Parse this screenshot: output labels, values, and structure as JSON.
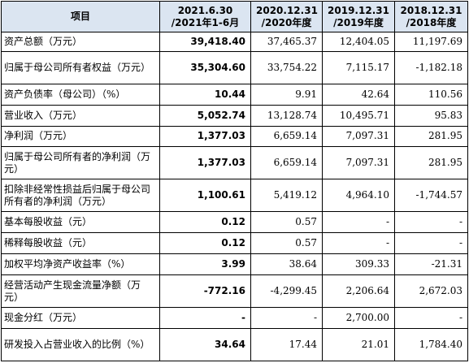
{
  "headers": {
    "item": "项目",
    "c1_line1": "2021.6.30",
    "c1_line2": "/2021年1-6月",
    "c2_line1": "2020.12.31",
    "c2_line2": "/2020年度",
    "c3_line1": "2019.12.31",
    "c3_line2": "/2019年度",
    "c4_line1": "2018.12.31",
    "c4_line2": "/2018年度"
  },
  "rows": [
    {
      "label": "资产总额（万元）",
      "v1": "39,418.40",
      "v2": "37,465.37",
      "v3": "12,404.05",
      "v4": "11,197.69"
    },
    {
      "label": "归属于母公司所有者权益（万元）",
      "v1": "35,304.60",
      "v2": "33,754.22",
      "v3": "7,115.17",
      "v4": "-1,182.18"
    },
    {
      "label": "资产负债率（母公司）（%）",
      "v1": "10.44",
      "v2": "9.91",
      "v3": "42.64",
      "v4": "110.56"
    },
    {
      "label": "营业收入（万元）",
      "v1": "5,052.74",
      "v2": "13,128.74",
      "v3": "10,495.71",
      "v4": "95.83"
    },
    {
      "label": "净利润（万元）",
      "v1": "1,377.03",
      "v2": "6,659.14",
      "v3": "7,097.31",
      "v4": "281.95"
    },
    {
      "label": "归属于母公司所有者的净利润（万元）",
      "v1": "1,377.03",
      "v2": "6,659.14",
      "v3": "7,097.31",
      "v4": "281.95"
    },
    {
      "label": "扣除非经常性损益后归属于母公司所有者的净利润（万元）",
      "v1": "1,100.61",
      "v2": "5,419.12",
      "v3": "4,964.10",
      "v4": "-1,744.57"
    },
    {
      "label": "基本每股收益（元）",
      "v1": "0.12",
      "v2": "0.57",
      "v3": "-",
      "v4": "-"
    },
    {
      "label": "稀释每股收益（元）",
      "v1": "0.12",
      "v2": "0.57",
      "v3": "-",
      "v4": "-"
    },
    {
      "label": "加权平均净资产收益率（%）",
      "v1": "3.99",
      "v2": "38.64",
      "v3": "309.33",
      "v4": "-21.31"
    },
    {
      "label": "经营活动产生现金流量净额（万元）",
      "v1": "-772.16",
      "v2": "-4,299.45",
      "v3": "2,206.64",
      "v4": "2,672.03"
    },
    {
      "label": "现金分红（万元）",
      "v1": "-",
      "v2": "-",
      "v3": "2,700.00",
      "v4": "-"
    },
    {
      "label": "研发投入占营业收入的比例（%）",
      "v1": "34.64",
      "v2": "17.44",
      "v3": "21.01",
      "v4": "1,784.40"
    }
  ]
}
